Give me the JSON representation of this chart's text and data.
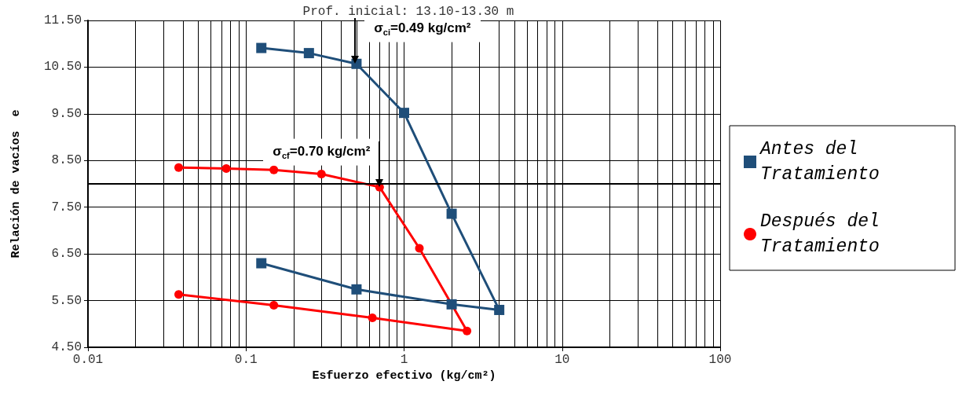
{
  "chart_data": {
    "type": "line",
    "title": "Prof. inicial: 13.10-13.30 m",
    "xlabel": "Esfuerzo efectivo (kg/cm²)",
    "ylabel": "Relación de vacíos  e",
    "log": "x",
    "grid": true,
    "legend": "right",
    "line_style": "solid",
    "xlim": [
      0.01,
      100
    ],
    "xticks": [
      0.01,
      0.1,
      1,
      10,
      100
    ],
    "ylim": [
      4.5,
      11.5
    ],
    "yticks": [
      {
        "value": 4.5,
        "label": "4.50"
      },
      {
        "value": 5.5,
        "label": "5.50"
      },
      {
        "value": 6.5,
        "label": "6.50"
      },
      {
        "value": 7.5,
        "label": "7.50"
      },
      {
        "value": 8.5,
        "label": "8.50"
      },
      {
        "value": 9.5,
        "label": "9.50"
      },
      {
        "value": 10.5,
        "label": "10.50"
      },
      {
        "value": 11.5,
        "label": "11.50"
      }
    ],
    "series": [
      {
        "name": "Antes del Tratamiento",
        "color": "#1f4e79",
        "marker": "square",
        "x": [
          0.125,
          0.25,
          0.5,
          1,
          2,
          4,
          2,
          0.5,
          0.125
        ],
        "values": [
          10.91,
          10.8,
          10.57,
          9.52,
          7.36,
          5.3,
          5.42,
          5.74,
          6.3
        ]
      },
      {
        "name": "Después del Tratamiento",
        "color": "#ff0000",
        "marker": "circle",
        "x": [
          0.0375,
          0.075,
          0.15,
          0.3,
          0.7,
          1.25,
          2.5,
          0.63,
          0.15,
          0.0375
        ],
        "values": [
          8.35,
          8.33,
          8.3,
          8.21,
          7.93,
          6.62,
          4.85,
          5.13,
          5.4,
          5.63
        ]
      }
    ],
    "ref_lines": [
      {
        "axis": "y",
        "value": 8.0,
        "color": "#000000"
      }
    ],
    "annotations": [
      {
        "text": "σ$_{ci}$=0.49 kg/cm²",
        "x": 0.49,
        "y": 10.57
      },
      {
        "text": "σ$_{cf}$=0.70 kg/cm²",
        "x": 0.7,
        "y": 7.93
      }
    ]
  }
}
